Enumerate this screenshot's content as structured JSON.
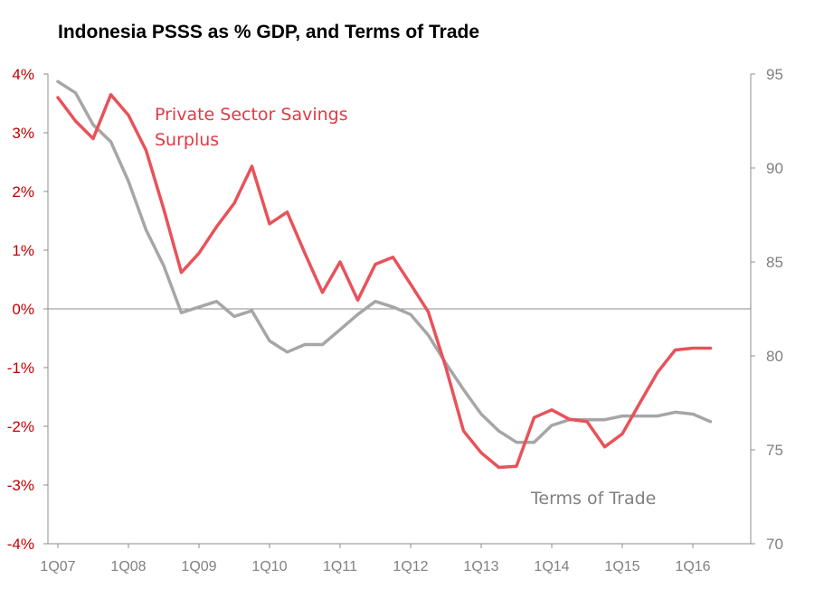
{
  "chart_data": {
    "type": "line",
    "title": "Indonesia PSSS as % GDP, and Terms of Trade",
    "x": [
      "1Q07",
      "2Q07",
      "3Q07",
      "4Q07",
      "1Q08",
      "2Q08",
      "3Q08",
      "4Q08",
      "1Q09",
      "2Q09",
      "3Q09",
      "4Q09",
      "1Q10",
      "2Q10",
      "3Q10",
      "4Q10",
      "1Q11",
      "2Q11",
      "3Q11",
      "4Q11",
      "1Q12",
      "2Q12",
      "3Q12",
      "4Q12",
      "1Q13",
      "2Q13",
      "3Q13",
      "4Q13",
      "1Q14",
      "2Q14",
      "3Q14",
      "4Q14",
      "1Q15",
      "2Q15",
      "3Q15",
      "4Q15",
      "1Q16",
      "2Q16"
    ],
    "x_tick_labels": [
      "1Q07",
      "1Q08",
      "1Q09",
      "1Q10",
      "1Q11",
      "1Q12",
      "1Q13",
      "1Q14",
      "1Q15",
      "1Q16"
    ],
    "y_left": {
      "range": [
        -4,
        4
      ],
      "ticks": [
        "-4%",
        "-3%",
        "-2%",
        "-1%",
        "0%",
        "1%",
        "2%",
        "3%",
        "4%"
      ],
      "color": "#c00000"
    },
    "y_right": {
      "range": [
        70,
        95
      ],
      "ticks": [
        "70",
        "75",
        "80",
        "85",
        "90",
        "95"
      ],
      "color": "#808080"
    },
    "series": [
      {
        "name": "Private Sector Savings Surplus",
        "axis": "left",
        "color": "#e8525a",
        "label_lines": [
          "Private Sector Savings",
          "Surplus"
        ],
        "values": [
          3.6,
          3.2,
          2.9,
          3.65,
          3.3,
          2.7,
          1.7,
          0.62,
          0.95,
          1.4,
          1.8,
          2.43,
          1.45,
          1.65,
          0.95,
          0.28,
          0.8,
          0.15,
          0.76,
          0.88,
          0.42,
          -0.05,
          -1.0,
          -2.08,
          -2.45,
          -2.7,
          -2.68,
          -1.85,
          -1.72,
          -1.88,
          -1.92,
          -2.35,
          -2.13,
          -1.6,
          -1.08,
          -0.7,
          -0.67,
          -0.67
        ]
      },
      {
        "name": "Terms of Trade",
        "axis": "right",
        "color": "#a6a6a6",
        "label_lines": [
          "Terms of Trade"
        ],
        "values": [
          94.6,
          94.0,
          92.3,
          91.4,
          89.3,
          86.7,
          84.8,
          82.3,
          82.6,
          82.9,
          82.1,
          82.4,
          80.8,
          80.2,
          80.6,
          80.6,
          81.4,
          82.2,
          82.9,
          82.6,
          82.2,
          81.1,
          79.6,
          78.2,
          76.9,
          76.0,
          75.4,
          75.4,
          76.3,
          76.6,
          76.6,
          76.6,
          76.8,
          76.8,
          76.8,
          77.0,
          76.9,
          76.5
        ]
      }
    ]
  }
}
